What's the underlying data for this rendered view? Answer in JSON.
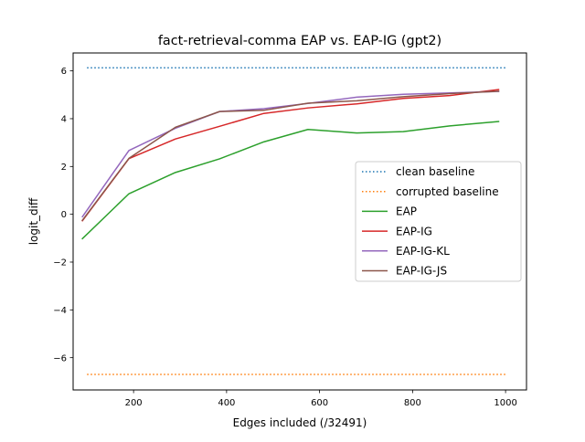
{
  "chart_data": {
    "type": "line",
    "title": "fact-retrieval-comma EAP vs. EAP-IG (gpt2)",
    "xlabel": "Edges included (/32491)",
    "ylabel": "logit_diff",
    "xlim": [
      70,
      1045
    ],
    "ylim": [
      -7.35,
      6.75
    ],
    "xticks": [
      200,
      400,
      600,
      800,
      1000
    ],
    "yticks": [
      -6,
      -4,
      -2,
      0,
      2,
      4,
      6
    ],
    "xtick_labels": [
      "200",
      "400",
      "600",
      "800",
      "1000"
    ],
    "ytick_labels": [
      "−6",
      "−4",
      "−2",
      "0",
      "2",
      "4",
      "6"
    ],
    "grid": false,
    "legend_position": "center-right",
    "x": [
      90,
      190,
      290,
      385,
      480,
      575,
      680,
      780,
      880,
      985
    ],
    "series": [
      {
        "name": "clean baseline",
        "style": "dotted",
        "color": "#1f77b4",
        "x": [
          100,
          1000
        ],
        "values": [
          6.13,
          6.13
        ]
      },
      {
        "name": "corrupted baseline",
        "style": "dotted",
        "color": "#ff7f0e",
        "x": [
          100,
          1000
        ],
        "values": [
          -6.7,
          -6.7
        ]
      },
      {
        "name": "EAP",
        "style": "solid",
        "color": "#2ca02c",
        "values": [
          -1.02,
          0.86,
          1.75,
          2.32,
          3.03,
          3.55,
          3.4,
          3.46,
          3.7,
          3.88
        ]
      },
      {
        "name": "EAP-IG",
        "style": "solid",
        "color": "#d62728",
        "values": [
          -0.27,
          2.33,
          3.15,
          3.68,
          4.22,
          4.45,
          4.62,
          4.85,
          4.97,
          5.22
        ]
      },
      {
        "name": "EAP-IG-KL",
        "style": "solid",
        "color": "#9467bd",
        "values": [
          -0.1,
          2.67,
          3.6,
          4.3,
          4.42,
          4.64,
          4.9,
          5.02,
          5.08,
          5.14
        ]
      },
      {
        "name": "EAP-IG-JS",
        "style": "solid",
        "color": "#8c564b",
        "values": [
          -0.25,
          2.34,
          3.64,
          4.3,
          4.35,
          4.65,
          4.75,
          4.92,
          5.05,
          5.15
        ]
      }
    ]
  }
}
